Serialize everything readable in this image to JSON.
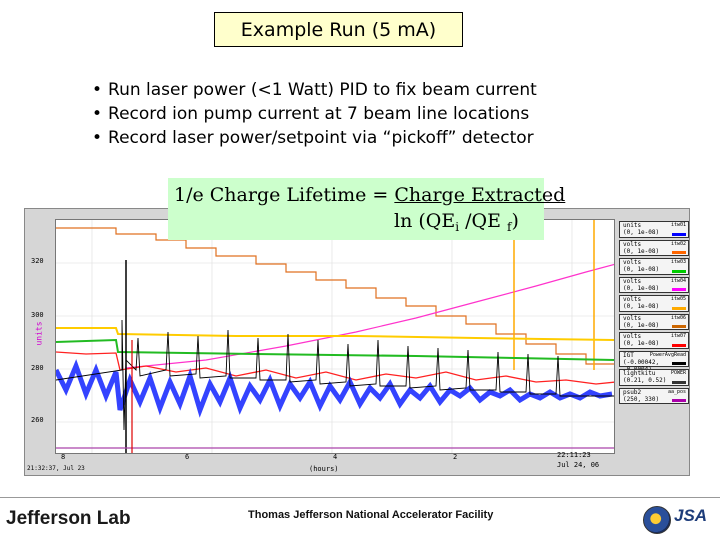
{
  "slide": {
    "title": "Example Run (5 mA)",
    "bullets": [
      "Run laser power (<1 Watt) PID to fix beam current",
      "Record ion pump current at 7 beam line locations",
      "Record laser power/setpoint via “pickoff” detector"
    ]
  },
  "formula": {
    "lhs": "1/e Charge Lifetime = ",
    "numerator": "Charge Extracted",
    "denominator_prefix": "ln (QE",
    "sub_i": "i",
    "slash": " /QE ",
    "sub_f": "f",
    "suffix": ")"
  },
  "plot": {
    "y_unit": "units",
    "y_ticks": [
      "320",
      "300",
      "280",
      "260"
    ],
    "x_ticks": [
      "8",
      "6",
      "4",
      "2"
    ],
    "x_label": "(hours)",
    "left_stamp": "21:32:37, Jul 23",
    "right_time": "22:11:23",
    "right_date": "Jul 24, 06",
    "legend": [
      {
        "label": "units",
        "pv": "itw01",
        "range": "(0, 1e-08)",
        "color": "#0000ff"
      },
      {
        "label": "volts",
        "pv": "itw02",
        "range": "(0, 1e-08)",
        "color": "#ff6600"
      },
      {
        "label": "volts",
        "pv": "itw03",
        "range": "(0, 1e-08)",
        "color": "#00cc00"
      },
      {
        "label": "volts",
        "pv": "itw04",
        "range": "(0, 1e-08)",
        "color": "#ff00ff"
      },
      {
        "label": "volts",
        "pv": "itw05",
        "range": "(0, 1e-08)",
        "color": "#ffaa00"
      },
      {
        "label": "volts",
        "pv": "itw06",
        "range": "(0, 1e-08)",
        "color": "#cc6600"
      },
      {
        "label": "volts",
        "pv": "itw07",
        "range": "(0, 1e-08)",
        "color": "#ff0000"
      },
      {
        "label": "IGT",
        "pv": "PowerAvgRead",
        "range": "(-0.00042, -0.0004)",
        "color": "#000000"
      },
      {
        "label": "lightkitu",
        "pv": "POWER",
        "range": "(0.21, 0.52)",
        "color": "#333333"
      },
      {
        "label": "psub2",
        "pv": "aa_pos",
        "range": "(250, 330)",
        "color": "#aa00aa"
      }
    ]
  },
  "footer": {
    "logo_text": "Jefferson Lab",
    "facility": "Thomas Jefferson National Accelerator Facility",
    "jsa": "JSA"
  },
  "colors": {
    "title_bg": "#ffffcc",
    "formula_bg": "#ccffcc",
    "plot_bg": "#ffffff",
    "frame_bg": "#d6d6d6"
  }
}
